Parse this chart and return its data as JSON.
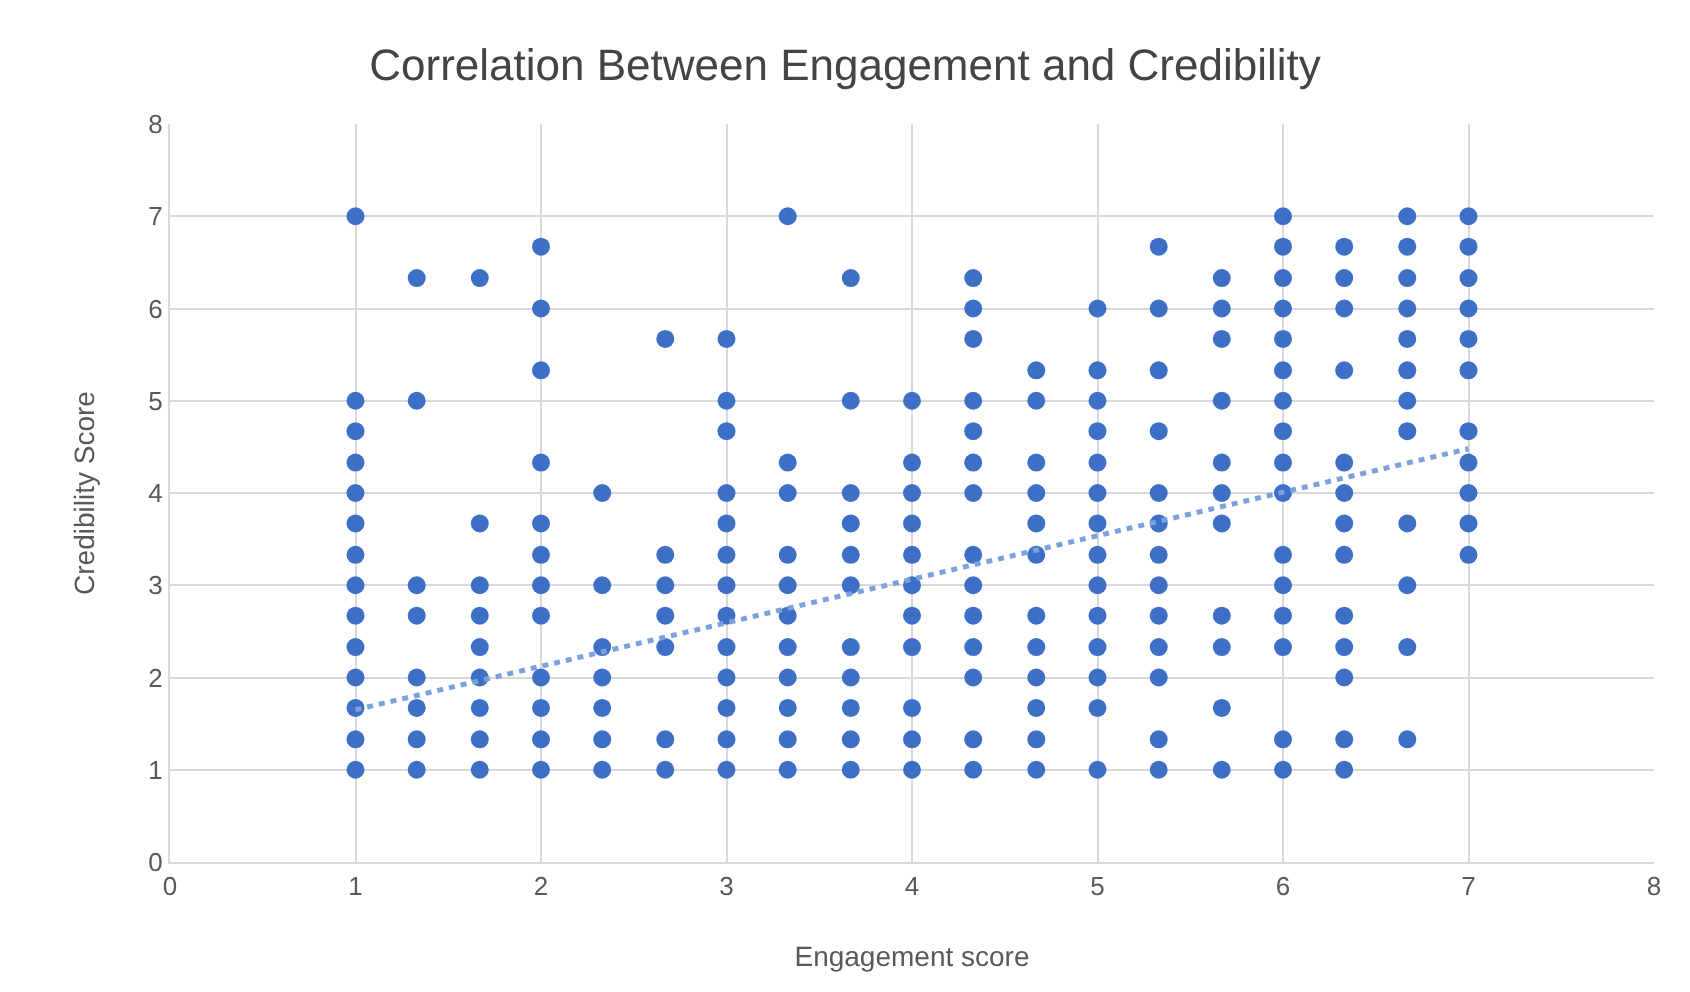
{
  "chart_data": {
    "type": "scatter",
    "title": "Correlation Between Engagement and Credibility",
    "xlabel": "Engagement score",
    "ylabel": "Credibility Score",
    "xlim": [
      0,
      8
    ],
    "xticks": [
      0,
      1,
      2,
      3,
      4,
      5,
      6,
      7,
      8
    ],
    "ylim": [
      0,
      8
    ],
    "yticks": [
      0,
      1,
      2,
      3,
      4,
      5,
      6,
      7,
      8
    ],
    "grid": true,
    "marker": "circle",
    "series": [
      {
        "color": "#3d6fc6",
        "x": [
          1,
          1,
          1,
          1,
          1,
          1,
          1,
          1,
          1,
          1,
          1,
          1,
          1,
          1,
          1.33,
          1.33,
          1.33,
          1.33,
          1.33,
          1.33,
          1.33,
          1.33,
          1.67,
          1.67,
          1.67,
          1.67,
          1.67,
          1.67,
          1.67,
          1.67,
          1.67,
          2,
          2,
          2,
          2,
          2,
          2,
          2,
          2,
          2,
          2,
          2,
          2,
          2.33,
          2.33,
          2.33,
          2.33,
          2.33,
          2.33,
          2.33,
          2.67,
          2.67,
          2.67,
          2.67,
          2.67,
          2.67,
          2.67,
          3,
          3,
          3,
          3,
          3,
          3,
          3,
          3,
          3,
          3,
          3,
          3,
          3,
          3.33,
          3.33,
          3.33,
          3.33,
          3.33,
          3.33,
          3.33,
          3.33,
          3.33,
          3.33,
          3.33,
          3.67,
          3.67,
          3.67,
          3.67,
          3.67,
          3.67,
          3.67,
          3.67,
          3.67,
          3.67,
          3.67,
          4,
          4,
          4,
          4,
          4,
          4,
          4,
          4,
          4,
          4,
          4,
          4.33,
          4.33,
          4.33,
          4.33,
          4.33,
          4.33,
          4.33,
          4.33,
          4.33,
          4.33,
          4.33,
          4.33,
          4.33,
          4.33,
          4.67,
          4.67,
          4.67,
          4.67,
          4.67,
          4.67,
          4.67,
          4.67,
          4.67,
          4.67,
          4.67,
          4.67,
          5,
          5,
          5,
          5,
          5,
          5,
          5,
          5,
          5,
          5,
          5,
          5,
          5,
          5,
          5.33,
          5.33,
          5.33,
          5.33,
          5.33,
          5.33,
          5.33,
          5.33,
          5.33,
          5.33,
          5.33,
          5.33,
          5.33,
          5.67,
          5.67,
          5.67,
          5.67,
          5.67,
          5.67,
          5.67,
          5.67,
          5.67,
          5.67,
          5.67,
          6,
          6,
          6,
          6,
          6,
          6,
          6,
          6,
          6,
          6,
          6,
          6,
          6,
          6,
          6,
          6,
          6.33,
          6.33,
          6.33,
          6.33,
          6.33,
          6.33,
          6.33,
          6.33,
          6.33,
          6.33,
          6.33,
          6.33,
          6.33,
          6.67,
          6.67,
          6.67,
          6.67,
          6.67,
          6.67,
          6.67,
          6.67,
          6.67,
          6.67,
          6.67,
          6.67,
          7,
          7,
          7,
          7,
          7,
          7,
          7,
          7,
          7,
          7,
          7
        ],
        "values": [
          7,
          5,
          4.67,
          4.33,
          4,
          3.67,
          3.33,
          3,
          2.67,
          2.33,
          2,
          1.67,
          1.33,
          1,
          6.33,
          5,
          3,
          2.67,
          2,
          1.67,
          1.33,
          1,
          6.33,
          3.67,
          3,
          2.67,
          2.33,
          2,
          1.67,
          1.33,
          1,
          6.67,
          6,
          5.33,
          4.33,
          3.67,
          3.33,
          3,
          2.67,
          2,
          1.67,
          1.33,
          1,
          4,
          3,
          2.33,
          2,
          1.67,
          1.33,
          1,
          5.67,
          3.33,
          3,
          2.67,
          2.33,
          1.33,
          1,
          5.67,
          5,
          4.67,
          4,
          3.67,
          3.33,
          3,
          2.67,
          2.33,
          2,
          1.67,
          1.33,
          1,
          7,
          4.33,
          4,
          3.33,
          3,
          2.67,
          2.33,
          2,
          1.67,
          1.33,
          1,
          6.33,
          5,
          4,
          3.67,
          3.33,
          3,
          2.33,
          2,
          1.67,
          1.33,
          1,
          5,
          4.33,
          4,
          3.67,
          3.33,
          3,
          2.67,
          2.33,
          1.67,
          1.33,
          1,
          6.33,
          6,
          5.67,
          5,
          4.67,
          4.33,
          4,
          3.33,
          3,
          2.67,
          2.33,
          2,
          1.33,
          1,
          5.33,
          5,
          4.33,
          4,
          3.67,
          3.33,
          2.67,
          2.33,
          2,
          1.67,
          1.33,
          1,
          6,
          5.33,
          5,
          4.67,
          4.33,
          4,
          3.67,
          3.33,
          3,
          2.67,
          2.33,
          2,
          1.67,
          1,
          6.67,
          6,
          5.33,
          4.67,
          4,
          3.67,
          3.33,
          3,
          2.67,
          2.33,
          2,
          1.33,
          1,
          6.33,
          6,
          5.67,
          5,
          4.33,
          4,
          3.67,
          2.67,
          2.33,
          1.67,
          1,
          7,
          6.67,
          6.33,
          6,
          5.67,
          5.33,
          5,
          4.67,
          4.33,
          4,
          3.33,
          3,
          2.67,
          2.33,
          1.33,
          1,
          6.67,
          6.33,
          6,
          5.33,
          4.33,
          4,
          3.67,
          3.33,
          2.67,
          2.33,
          2,
          1.33,
          1,
          7,
          6.67,
          6.33,
          6,
          5.67,
          5.33,
          5,
          4.67,
          3.67,
          3,
          2.33,
          1.33,
          7,
          6.67,
          6.33,
          6,
          5.67,
          5.33,
          4.67,
          4.33,
          4,
          3.67,
          3.33
        ]
      },
      {
        "type": "line",
        "color": "#7ba1dc",
        "line_style": "dotted",
        "marker": "none",
        "x": [
          1,
          7
        ],
        "values": [
          1.65,
          4.48
        ]
      }
    ]
  }
}
